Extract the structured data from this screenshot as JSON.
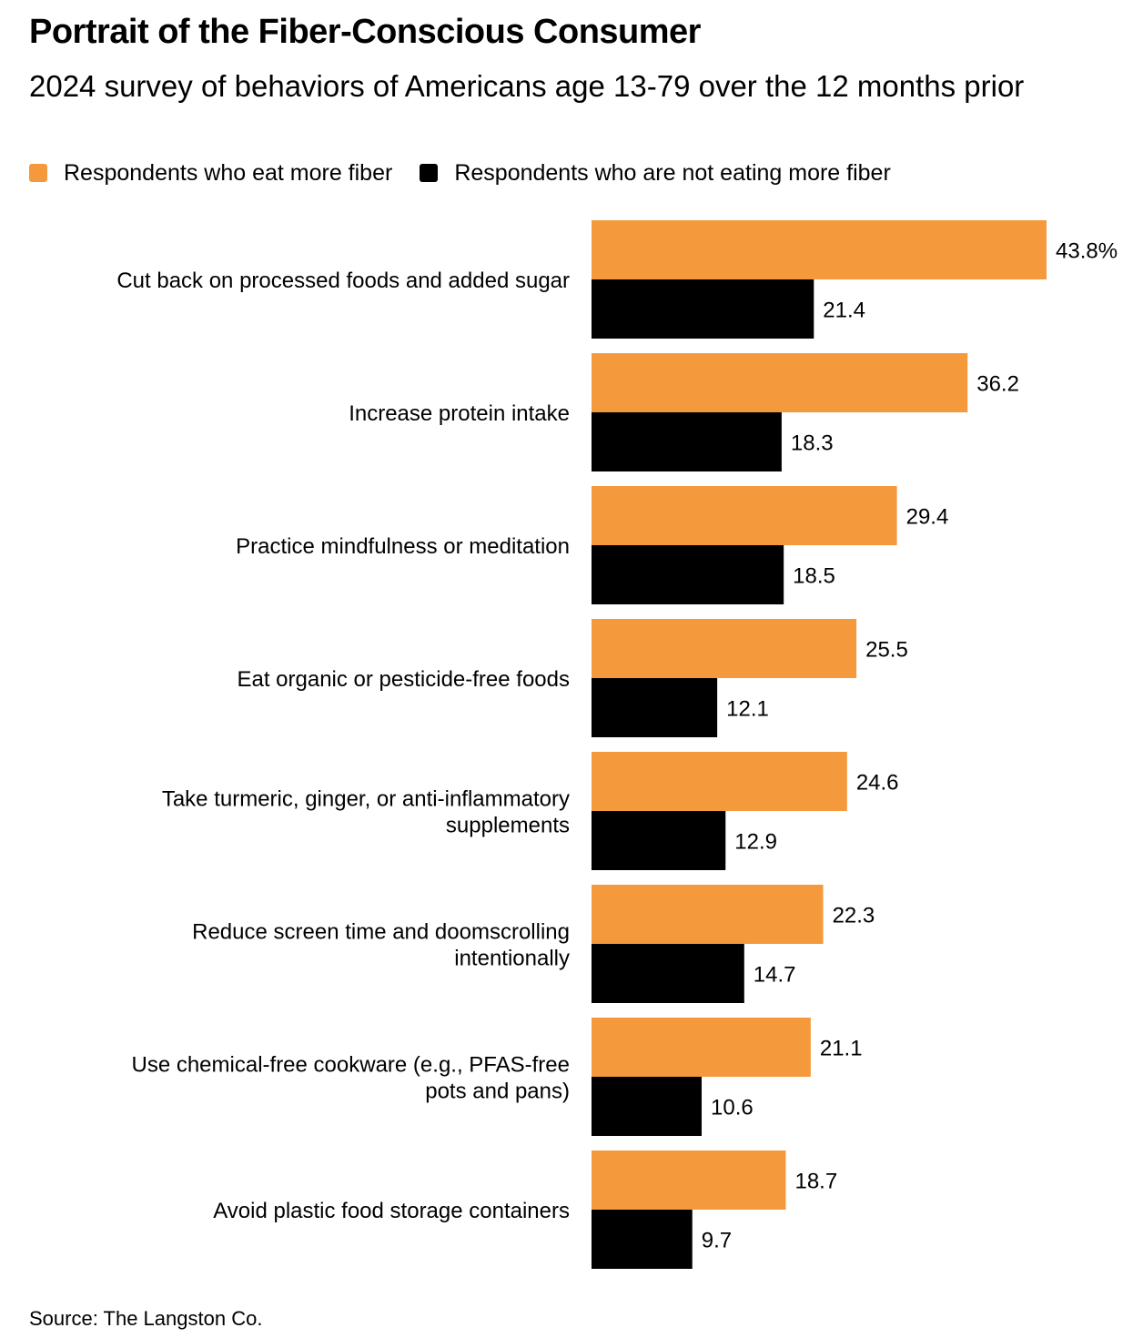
{
  "title": "Portrait of the Fiber-Conscious Consumer",
  "subtitle": "2024 survey of behaviors of Americans age 13-79 over the 12 months prior",
  "source": "Source: The Langston Co.",
  "chart_data": {
    "type": "bar",
    "orientation": "horizontal",
    "categories": [
      [
        "Cut back on processed foods and added sugar"
      ],
      [
        "Increase protein intake"
      ],
      [
        "Practice mindfulness or meditation"
      ],
      [
        "Eat organic or pesticide-free foods"
      ],
      [
        "Take turmeric, ginger, or anti-inflammatory",
        "supplements"
      ],
      [
        "Reduce screen time and doomscrolling",
        "intentionally"
      ],
      [
        "Use chemical-free cookware (e.g., PFAS-free",
        "pots and pans)"
      ],
      [
        "Avoid plastic food storage containers"
      ]
    ],
    "series": [
      {
        "name": "Respondents who eat more fiber",
        "color": "#F59A3C",
        "values": [
          43.8,
          36.2,
          29.4,
          25.5,
          24.6,
          22.3,
          21.1,
          18.7
        ],
        "labels": [
          "43.8%",
          "36.2",
          "29.4",
          "25.5",
          "24.6",
          "22.3",
          "21.1",
          "18.7"
        ]
      },
      {
        "name": "Respondents who are not eating more fiber",
        "color": "#000000",
        "values": [
          21.4,
          18.3,
          18.5,
          12.1,
          12.9,
          14.7,
          10.6,
          9.7
        ],
        "labels": [
          "21.4",
          "18.3",
          "18.5",
          "12.1",
          "12.9",
          "14.7",
          "10.6",
          "9.7"
        ]
      }
    ],
    "unit": "%",
    "xlim": [
      0,
      43.8
    ],
    "legend_position": "top-left",
    "grid": false
  }
}
